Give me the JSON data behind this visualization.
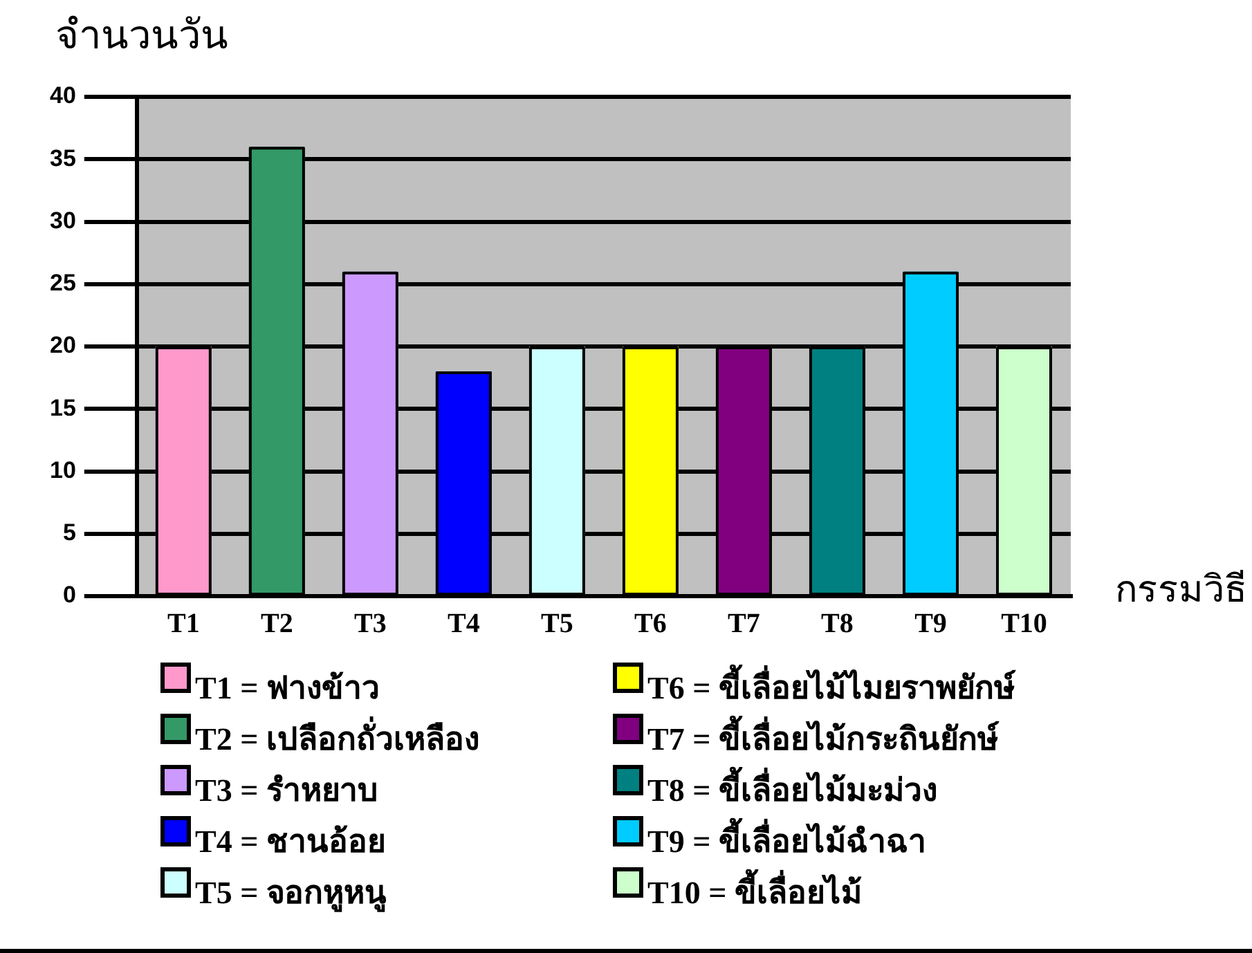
{
  "chart_data": {
    "type": "bar",
    "stacked": true,
    "categories": [
      "T1",
      "T2",
      "T3",
      "T4",
      "T5",
      "T6",
      "T7",
      "T8",
      "T9",
      "T10"
    ],
    "series": [
      {
        "name": "T1 = ฟางข้าว",
        "color": "#ff99cc",
        "values": [
          20,
          null,
          null,
          null,
          null,
          null,
          null,
          null,
          null,
          null
        ]
      },
      {
        "name": "T2 = เปลือกถั่วเหลือง",
        "color": "#339966",
        "values": [
          null,
          36,
          null,
          null,
          null,
          null,
          null,
          null,
          null,
          null
        ]
      },
      {
        "name": "T3 = รำหยาบ",
        "color": "#cc99ff",
        "values": [
          null,
          null,
          26,
          null,
          null,
          null,
          null,
          null,
          null,
          null
        ]
      },
      {
        "name": "T4 = ชานอ้อย",
        "color": "#0000ff",
        "values": [
          null,
          null,
          null,
          18,
          null,
          null,
          null,
          null,
          null,
          null
        ]
      },
      {
        "name": "T5 = จอกหูหนู",
        "color": "#ccffff",
        "values": [
          null,
          null,
          null,
          null,
          20,
          null,
          null,
          null,
          null,
          null
        ]
      },
      {
        "name": "T6 = ขี้เลื่อยไม้ไมยราพยักษ์",
        "color": "#ffff00",
        "values": [
          null,
          null,
          null,
          null,
          null,
          20,
          null,
          null,
          null,
          null
        ]
      },
      {
        "name": "T7 = ขี้เลื่อยไม้กระถินยักษ์",
        "color": "#800080",
        "values": [
          null,
          null,
          null,
          null,
          null,
          null,
          20,
          null,
          null,
          null
        ]
      },
      {
        "name": "T8 = ขี้เลื่อยไม้มะม่วง",
        "color": "#008080",
        "values": [
          null,
          null,
          null,
          null,
          null,
          null,
          null,
          20,
          null,
          null
        ]
      },
      {
        "name": "T9 = ขี้เลื่อยไม้ฉำฉา",
        "color": "#00ccff",
        "values": [
          null,
          null,
          null,
          null,
          null,
          null,
          null,
          null,
          26,
          null
        ]
      },
      {
        "name": "T10 = ขี้เลื่อยไม้",
        "color": "#ccffcc",
        "values": [
          null,
          null,
          null,
          null,
          null,
          null,
          null,
          null,
          null,
          20
        ]
      }
    ],
    "ylim": [
      0,
      40
    ],
    "yticks": [
      0,
      5,
      10,
      15,
      20,
      25,
      30,
      35,
      40
    ],
    "ylabel": "จำนวนวัน",
    "xlabel": "กรรมวิธี",
    "grid": "y",
    "legend": "bottom"
  }
}
